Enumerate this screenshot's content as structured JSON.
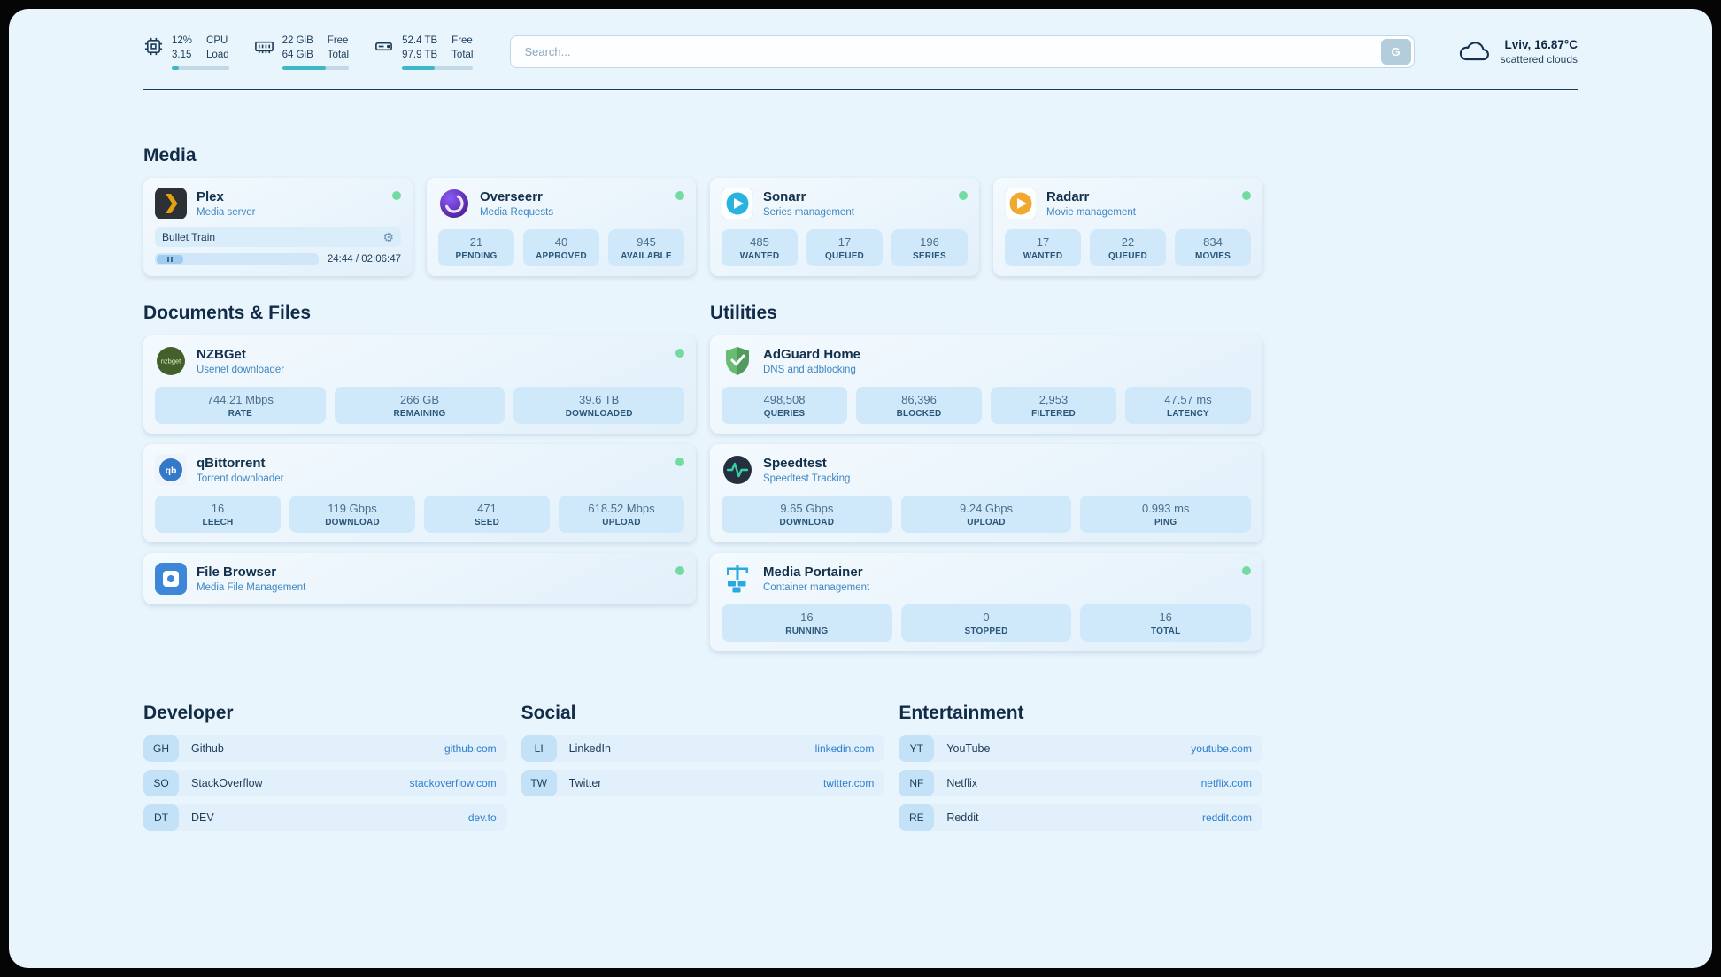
{
  "topbar": {
    "resources": [
      {
        "icon": "cpu-icon",
        "v1": "12%",
        "l1": "CPU",
        "v2": "3.15",
        "l2": "Load",
        "bar_percent": 12
      },
      {
        "icon": "ram-icon",
        "v1": "22 GiB",
        "l1": "Free",
        "v2": "64 GiB",
        "l2": "Total",
        "bar_percent": 65
      },
      {
        "icon": "disk-icon",
        "v1": "52.4 TB",
        "l1": "Free",
        "v2": "97.9 TB",
        "l2": "Total",
        "bar_percent": 46
      }
    ],
    "search": {
      "placeholder": "Search...",
      "button_label": "G"
    },
    "weather": {
      "location": "Lviv, 16.87°C",
      "condition": "scattered clouds"
    }
  },
  "groups": {
    "media": {
      "title": "Media",
      "cards": [
        {
          "name": "Plex",
          "subtitle": "Media server",
          "online": true,
          "player": {
            "title": "Bullet Train",
            "time": "24:44 / 02:06:47"
          }
        },
        {
          "name": "Overseerr",
          "subtitle": "Media Requests",
          "online": true,
          "stats": [
            {
              "value": "21",
              "label": "PENDING"
            },
            {
              "value": "40",
              "label": "APPROVED"
            },
            {
              "value": "945",
              "label": "AVAILABLE"
            }
          ]
        },
        {
          "name": "Sonarr",
          "subtitle": "Series management",
          "online": true,
          "stats": [
            {
              "value": "485",
              "label": "WANTED"
            },
            {
              "value": "17",
              "label": "QUEUED"
            },
            {
              "value": "196",
              "label": "SERIES"
            }
          ]
        },
        {
          "name": "Radarr",
          "subtitle": "Movie management",
          "online": true,
          "stats": [
            {
              "value": "17",
              "label": "WANTED"
            },
            {
              "value": "22",
              "label": "QUEUED"
            },
            {
              "value": "834",
              "label": "MOVIES"
            }
          ]
        }
      ]
    },
    "documents": {
      "title": "Documents & Files",
      "cards": [
        {
          "name": "NZBGet",
          "subtitle": "Usenet downloader",
          "online": true,
          "stats": [
            {
              "value": "744.21 Mbps",
              "label": "RATE"
            },
            {
              "value": "266 GB",
              "label": "REMAINING"
            },
            {
              "value": "39.6 TB",
              "label": "DOWNLOADED"
            }
          ]
        },
        {
          "name": "qBittorrent",
          "subtitle": "Torrent downloader",
          "online": true,
          "stats": [
            {
              "value": "16",
              "label": "LEECH"
            },
            {
              "value": "119 Gbps",
              "label": "DOWNLOAD"
            },
            {
              "value": "471",
              "label": "SEED"
            },
            {
              "value": "618.52 Mbps",
              "label": "UPLOAD"
            }
          ]
        },
        {
          "name": "File Browser",
          "subtitle": "Media File Management",
          "online": true,
          "stats": []
        }
      ]
    },
    "utilities": {
      "title": "Utilities",
      "cards": [
        {
          "name": "AdGuard Home",
          "subtitle": "DNS and adblocking",
          "online": false,
          "stats": [
            {
              "value": "498,508",
              "label": "QUERIES"
            },
            {
              "value": "86,396",
              "label": "BLOCKED"
            },
            {
              "value": "2,953",
              "label": "FILTERED"
            },
            {
              "value": "47.57 ms",
              "label": "LATENCY"
            }
          ]
        },
        {
          "name": "Speedtest",
          "subtitle": "Speedtest Tracking",
          "online": false,
          "stats": [
            {
              "value": "9.65 Gbps",
              "label": "DOWNLOAD"
            },
            {
              "value": "9.24 Gbps",
              "label": "UPLOAD"
            },
            {
              "value": "0.993 ms",
              "label": "PING"
            }
          ]
        },
        {
          "name": "Media Portainer",
          "subtitle": "Container management",
          "online": true,
          "stats": [
            {
              "value": "16",
              "label": "RUNNING"
            },
            {
              "value": "0",
              "label": "STOPPED"
            },
            {
              "value": "16",
              "label": "TOTAL"
            }
          ]
        }
      ]
    }
  },
  "bookmarks": {
    "groups": [
      {
        "title": "Developer",
        "items": [
          {
            "abbr": "GH",
            "name": "Github",
            "url": "github.com"
          },
          {
            "abbr": "SO",
            "name": "StackOverflow",
            "url": "stackoverflow.com"
          },
          {
            "abbr": "DT",
            "name": "DEV",
            "url": "dev.to"
          }
        ]
      },
      {
        "title": "Social",
        "items": [
          {
            "abbr": "LI",
            "name": "LinkedIn",
            "url": "linkedin.com"
          },
          {
            "abbr": "TW",
            "name": "Twitter",
            "url": "twitter.com"
          }
        ]
      },
      {
        "title": "Entertainment",
        "items": [
          {
            "abbr": "YT",
            "name": "YouTube",
            "url": "youtube.com"
          },
          {
            "abbr": "NF",
            "name": "Netflix",
            "url": "netflix.com"
          },
          {
            "abbr": "RE",
            "name": "Reddit",
            "url": "reddit.com"
          }
        ]
      }
    ]
  }
}
